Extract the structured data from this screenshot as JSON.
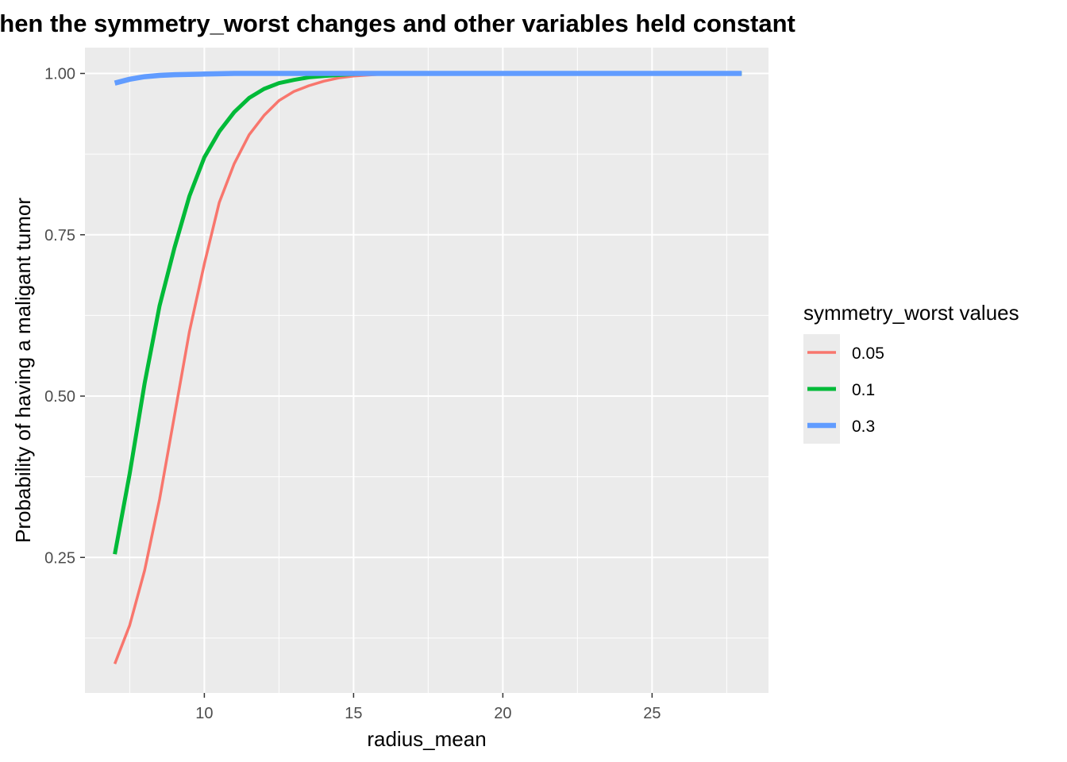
{
  "chart_data": {
    "type": "line",
    "title": "When the symmetry_worst changes and other variables held constant",
    "xlabel": "radius_mean",
    "ylabel": "Probability of having a maligant tumor",
    "xlim": [
      6.0,
      28.9
    ],
    "ylim": [
      0.04,
      1.04
    ],
    "x_ticks": [
      10,
      15,
      20,
      25
    ],
    "x_tick_labels": [
      "10",
      "15",
      "20",
      "25"
    ],
    "y_ticks": [
      0.25,
      0.5,
      0.75,
      1.0
    ],
    "y_tick_labels": [
      "0.25",
      "0.50",
      "0.75",
      "1.00"
    ],
    "grid": true,
    "legend": {
      "title": "symmetry_worst values",
      "position": "right"
    },
    "series": [
      {
        "name": "0.05",
        "color": "#F8766D",
        "x": [
          7.0,
          7.5,
          8.0,
          8.5,
          9.0,
          9.5,
          10.0,
          10.5,
          11.0,
          11.5,
          12.0,
          12.5,
          13.0,
          13.5,
          14.0,
          14.5,
          15.0,
          16.0,
          17.0,
          20.0,
          25.0,
          28.0
        ],
        "y": [
          0.085,
          0.145,
          0.23,
          0.34,
          0.47,
          0.6,
          0.705,
          0.8,
          0.86,
          0.905,
          0.935,
          0.958,
          0.972,
          0.981,
          0.988,
          0.993,
          0.996,
          0.999,
          1.0,
          1.0,
          1.0,
          1.0
        ]
      },
      {
        "name": "0.1",
        "color": "#00BA38",
        "x": [
          7.0,
          7.5,
          8.0,
          8.5,
          9.0,
          9.5,
          10.0,
          10.5,
          11.0,
          11.5,
          12.0,
          12.5,
          13.0,
          13.5,
          14.0,
          15.0,
          16.0,
          17.0,
          20.0,
          25.0,
          28.0
        ],
        "y": [
          0.255,
          0.38,
          0.52,
          0.64,
          0.73,
          0.81,
          0.87,
          0.91,
          0.94,
          0.962,
          0.976,
          0.985,
          0.99,
          0.994,
          0.996,
          0.999,
          1.0,
          1.0,
          1.0,
          1.0,
          1.0
        ]
      },
      {
        "name": "0.3",
        "color": "#619CFF",
        "x": [
          7.0,
          7.5,
          8.0,
          8.5,
          9.0,
          10.0,
          11.0,
          12.0,
          15.0,
          20.0,
          25.0,
          28.0
        ],
        "y": [
          0.985,
          0.991,
          0.995,
          0.997,
          0.998,
          0.999,
          1.0,
          1.0,
          1.0,
          1.0,
          1.0,
          1.0
        ]
      }
    ]
  }
}
